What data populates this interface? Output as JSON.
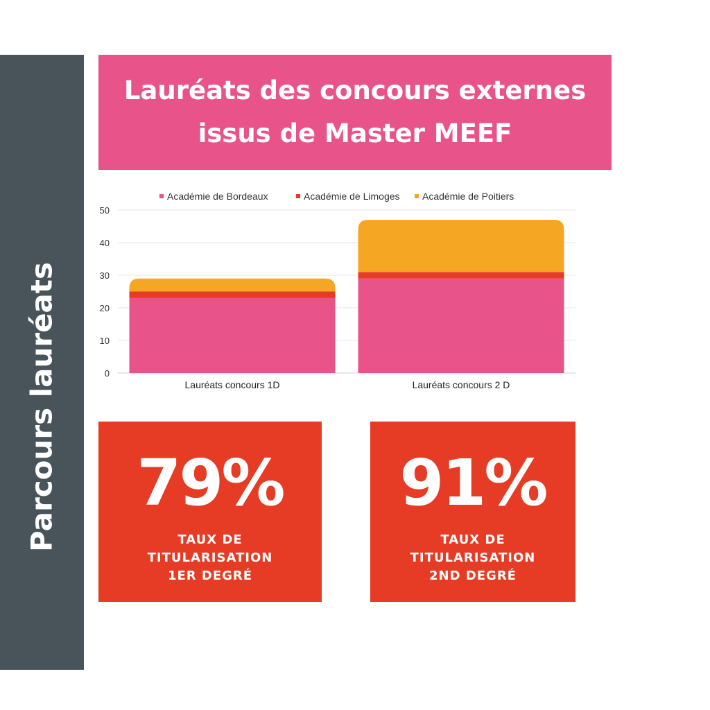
{
  "sidebar": {
    "label": "Parcours lauréats"
  },
  "title": {
    "line1": "Lauréats des concours externes",
    "line2": "issus de Master MEEF"
  },
  "colors": {
    "sidebar": "#48545a",
    "title_bg": "#e8548a",
    "card_bg": "#e63b24",
    "bordeaux": "#e8548a",
    "limoges": "#e63b24",
    "poitiers": "#f5a623"
  },
  "chart_data": {
    "type": "bar",
    "stacked": true,
    "categories": [
      "Lauréats concours 1D",
      "Lauréats concours 2 D"
    ],
    "series": [
      {
        "name": "Académie de Bordeaux",
        "values": [
          23,
          29
        ],
        "color": "#e8548a"
      },
      {
        "name": "Académie de Limoges",
        "values": [
          2,
          2
        ],
        "color": "#e63b24"
      },
      {
        "name": "Académie de Poitiers",
        "values": [
          4,
          16
        ],
        "color": "#f5a623"
      }
    ],
    "ylim": [
      0,
      50
    ],
    "yticks": [
      0,
      10,
      20,
      30,
      40,
      50
    ],
    "grid": true,
    "legend": "top"
  },
  "stats": [
    {
      "value": "79%",
      "caption": [
        "TAUX DE",
        "TITULARISATION",
        "1ER DEGRÉ"
      ]
    },
    {
      "value": "91%",
      "caption": [
        "TAUX DE",
        "TITULARISATION",
        "2ND DEGRÉ"
      ]
    }
  ]
}
